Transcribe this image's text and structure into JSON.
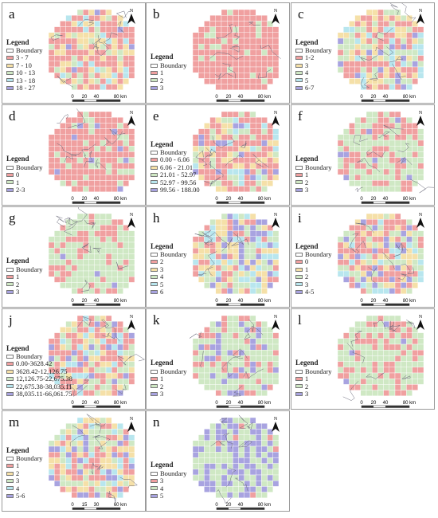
{
  "legend_title": "Legend",
  "boundary_label": "Boundary",
  "north_label": "N",
  "scale_ticks": [
    "0",
    "20",
    "40",
    "80 km"
  ],
  "scale_ticks_m": [
    "0",
    "15",
    "30",
    "60 km"
  ],
  "colors": [
    "#f0a0a0",
    "#f5e0a8",
    "#cfe8c4",
    "#b8e6ee",
    "#a8a3e0",
    "#c9a6f0"
  ],
  "panels": [
    {
      "letter": "a",
      "items": [
        "3 - 7",
        "7 - 10",
        "10 - 13",
        "13 - 18",
        "18 - 27"
      ]
    },
    {
      "letter": "b",
      "items": [
        "1",
        "2",
        "3"
      ]
    },
    {
      "letter": "c",
      "items": [
        "1-2",
        "3",
        "4",
        "5",
        "6-7"
      ]
    },
    {
      "letter": "d",
      "items": [
        "0",
        "1",
        "2-3"
      ]
    },
    {
      "letter": "e",
      "items": [
        "0.00 - 6.06",
        "6.06 - 21.01",
        "21.01 - 52.97",
        "52.97 - 99.56",
        "99.56 - 188.00"
      ]
    },
    {
      "letter": "f",
      "items": [
        "1",
        "2",
        "3"
      ]
    },
    {
      "letter": "g",
      "items": [
        "1",
        "2",
        "3"
      ]
    },
    {
      "letter": "h",
      "items": [
        "2",
        "3",
        "4",
        "5",
        "6"
      ]
    },
    {
      "letter": "i",
      "items": [
        "0",
        "1",
        "2",
        "3",
        "4-5"
      ]
    },
    {
      "letter": "j",
      "items": [
        "0.00-3628.42",
        "3628.42-12,126.75",
        "12,126.75-22,675.38",
        "22,675.38-38,035.11",
        "38,035.11-66,061.75"
      ]
    },
    {
      "letter": "k",
      "items": [
        "1",
        "2",
        "3"
      ]
    },
    {
      "letter": "l",
      "items": [
        "1",
        "2",
        "3"
      ]
    },
    {
      "letter": "m",
      "items": [
        "1",
        "2",
        "3",
        "4",
        "5-6"
      ]
    },
    {
      "letter": "n",
      "items": [
        "3",
        "4",
        "5"
      ]
    }
  ]
}
